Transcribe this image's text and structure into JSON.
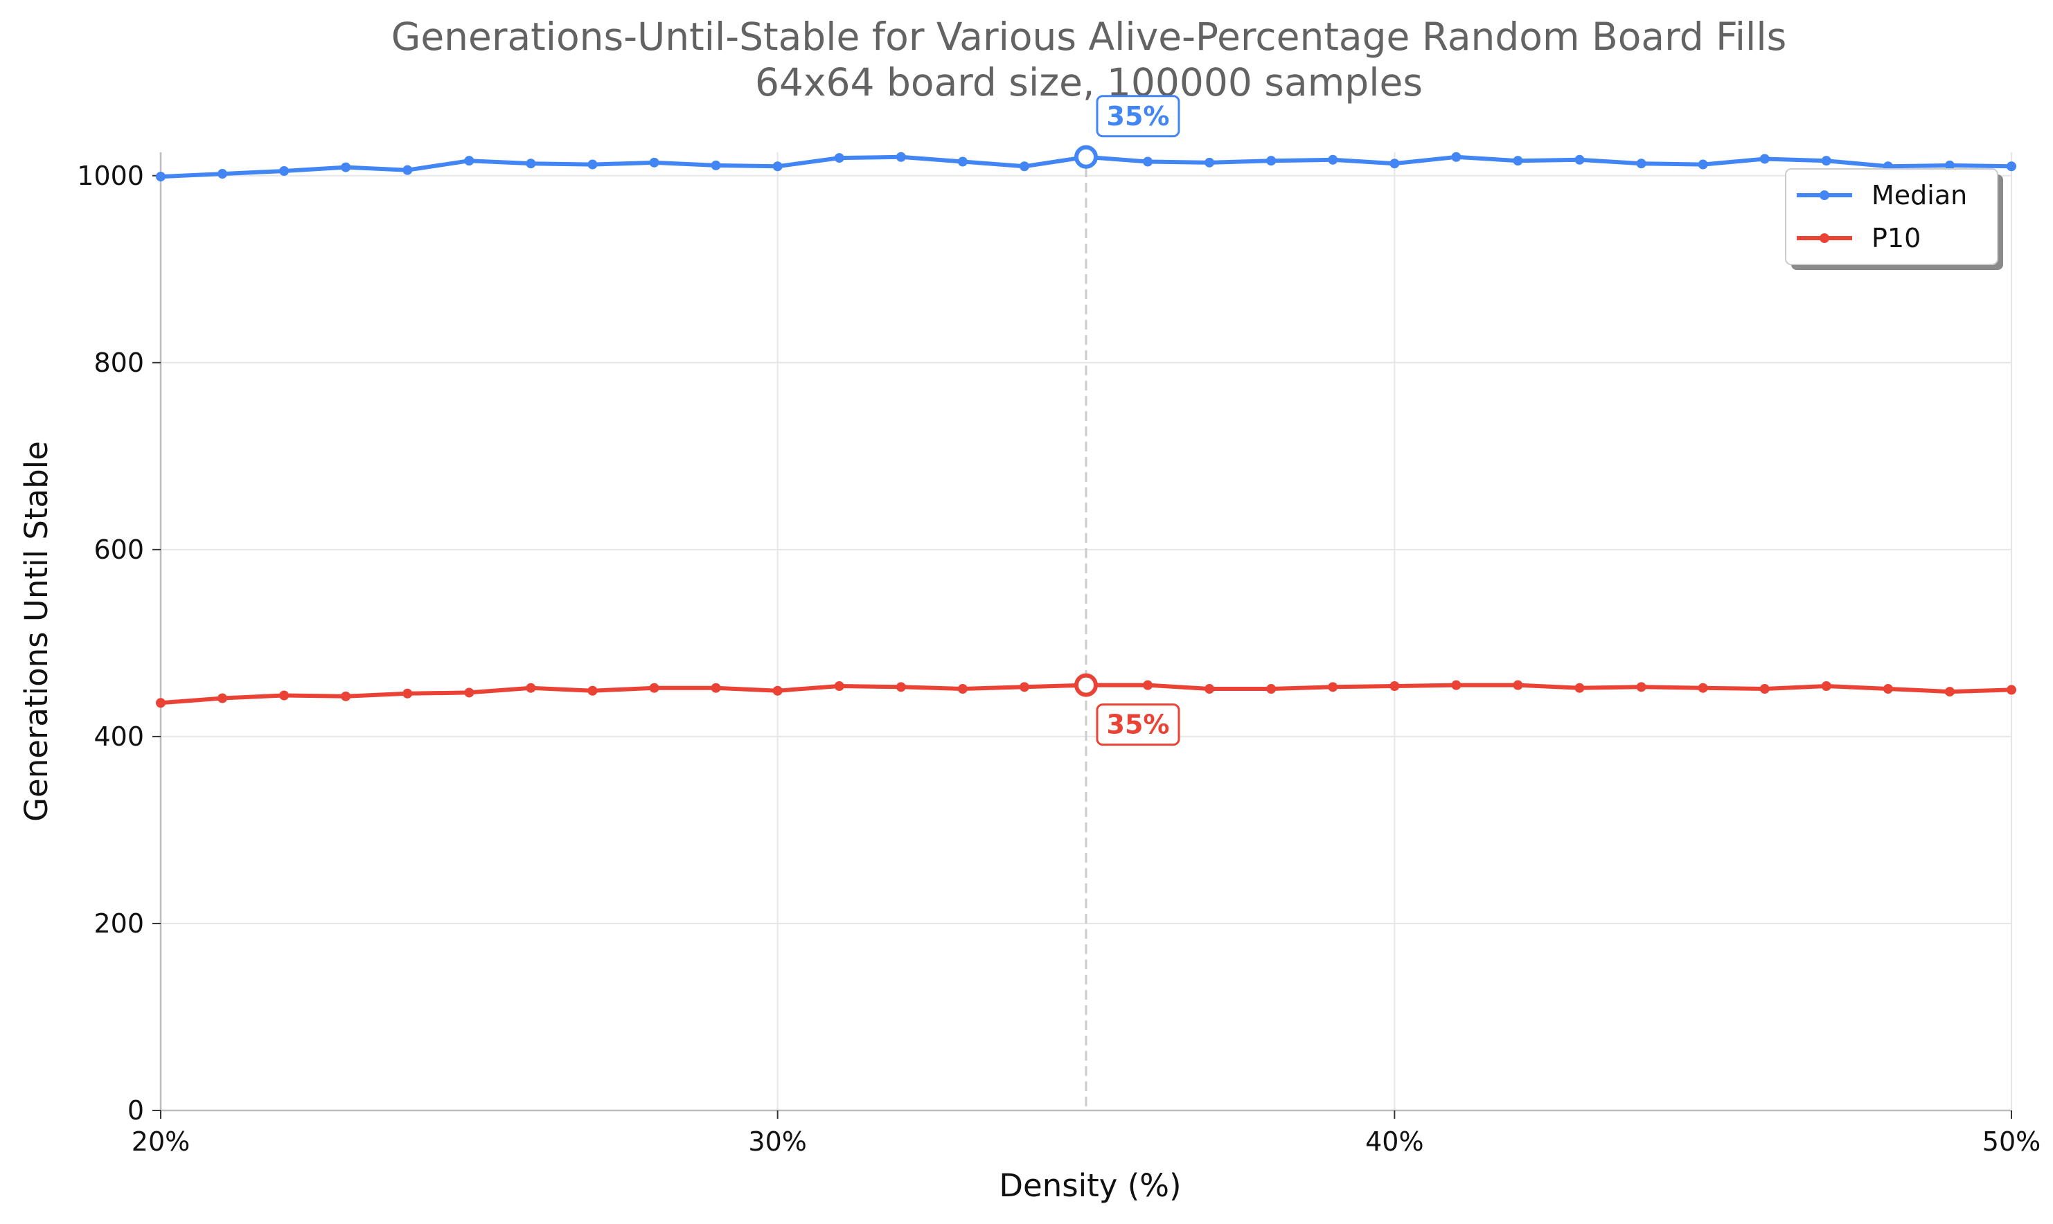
{
  "chart_data": {
    "type": "line",
    "title": "Generations-Until-Stable for Various Alive-Percentage Random Board Fills",
    "subtitle": "64x64 board size, 100000 samples",
    "xlabel": "Density (%)",
    "ylabel": "Generations Until Stable",
    "xlim": [
      20,
      50
    ],
    "ylim": [
      0,
      1025
    ],
    "x_ticks": [
      20,
      30,
      40,
      50
    ],
    "x_tick_labels": [
      "20%",
      "30%",
      "40%",
      "50%"
    ],
    "y_ticks": [
      0,
      200,
      400,
      600,
      800,
      1000
    ],
    "y_tick_labels": [
      "0",
      "200",
      "400",
      "600",
      "800",
      "1000"
    ],
    "grid": true,
    "legend_position": "top-right",
    "x": [
      20,
      21,
      22,
      23,
      24,
      25,
      26,
      27,
      28,
      29,
      30,
      31,
      32,
      33,
      34,
      35,
      36,
      37,
      38,
      39,
      40,
      41,
      42,
      43,
      44,
      45,
      46,
      47,
      48,
      49,
      50
    ],
    "series": [
      {
        "name": "Median",
        "color": "#4285f4",
        "values": [
          999,
          1002,
          1005,
          1009,
          1006,
          1016,
          1013,
          1012,
          1014,
          1011,
          1010,
          1019,
          1020,
          1015,
          1010,
          1020,
          1015,
          1014,
          1016,
          1017,
          1013,
          1020,
          1016,
          1017,
          1013,
          1012,
          1018,
          1016,
          1010,
          1011,
          1010
        ],
        "peak_x": 35,
        "peak_label": "35%"
      },
      {
        "name": "P10",
        "color": "#ea4335",
        "values": [
          436,
          441,
          444,
          443,
          446,
          447,
          452,
          449,
          452,
          452,
          449,
          454,
          453,
          451,
          453,
          455,
          455,
          451,
          451,
          453,
          454,
          455,
          455,
          452,
          453,
          452,
          451,
          454,
          451,
          448,
          450
        ],
        "peak_x": 35,
        "peak_label": "35%"
      }
    ],
    "annotations": [
      {
        "text": "35%",
        "series": "Median",
        "x": 35,
        "placement": "above"
      },
      {
        "text": "35%",
        "series": "P10",
        "x": 35,
        "placement": "below"
      }
    ],
    "reference_line_x": 35
  }
}
